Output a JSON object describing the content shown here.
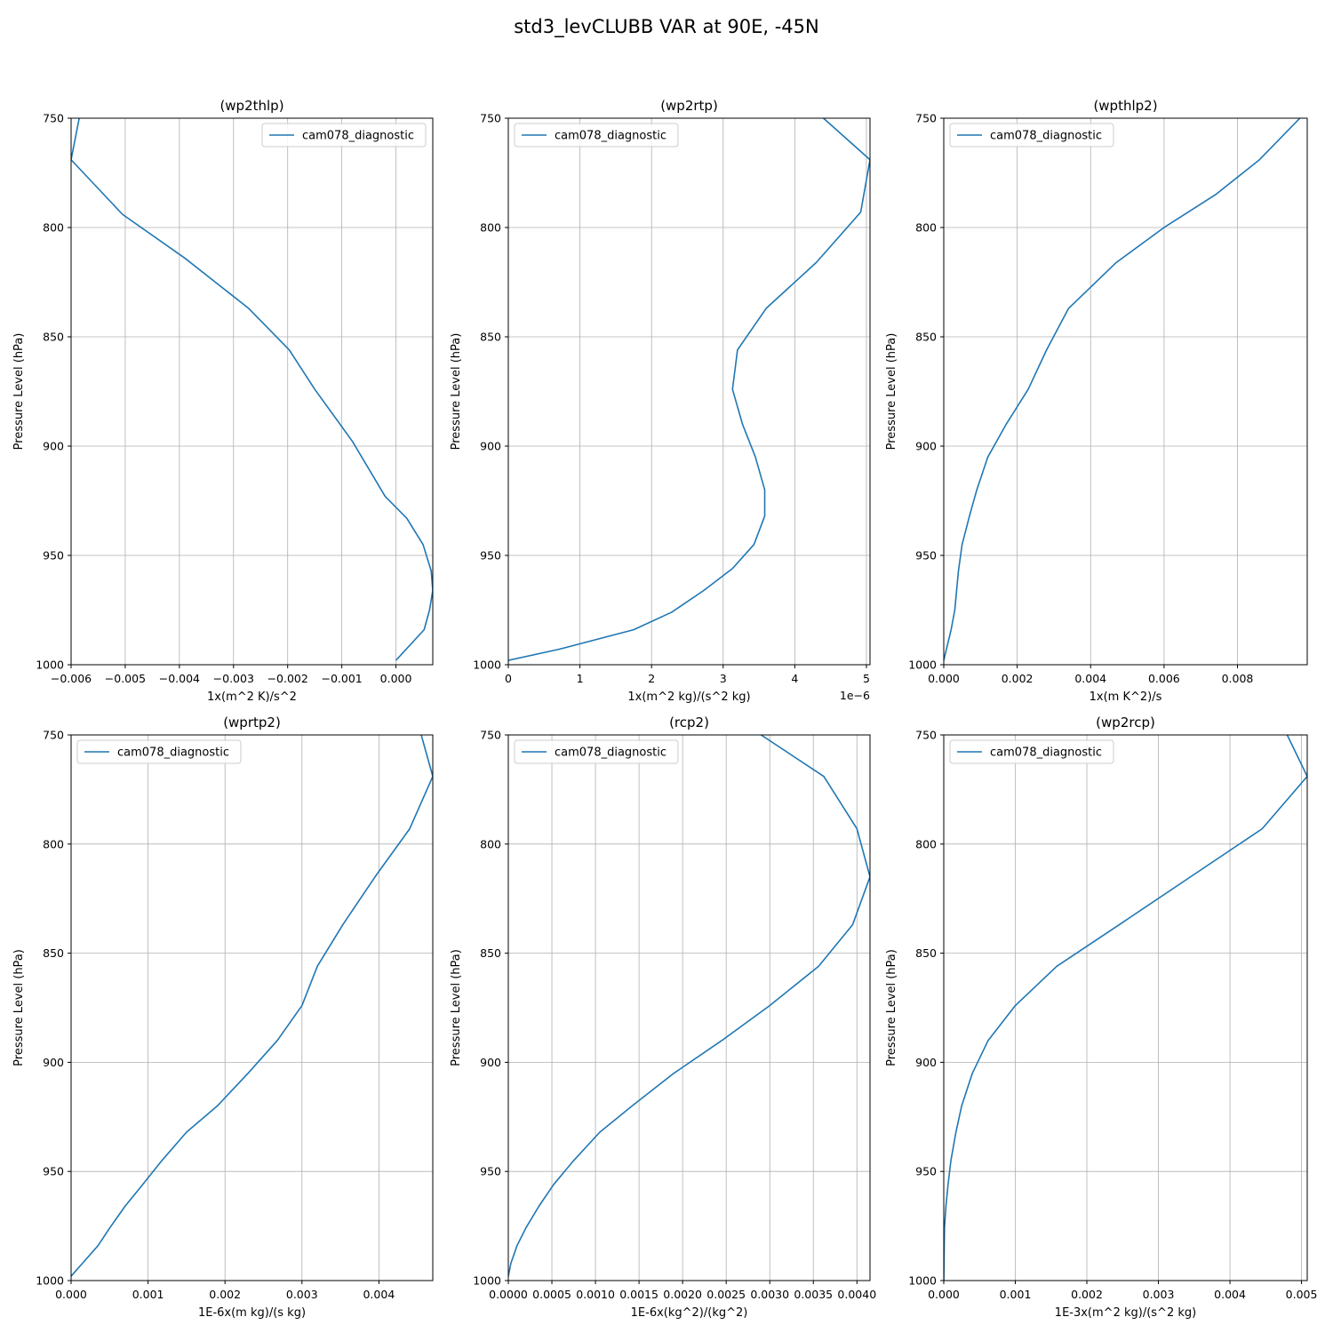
{
  "figure": {
    "title": "std3_levCLUBB VAR at 90E, -45N"
  },
  "chart_data": [
    {
      "type": "line",
      "title": "(wp2thlp)",
      "xlabel": "1x(m^2 K)/s^2",
      "ylabel": "Pressure Level (hPa)",
      "xlim": [
        -0.006,
        0.00068
      ],
      "ylim": [
        1000,
        750
      ],
      "x_ticks": [
        "−0.006",
        "−0.005",
        "−0.004",
        "−0.003",
        "−0.002",
        "−0.001",
        "0.000"
      ],
      "x_tick_values": [
        -0.006,
        -0.005,
        -0.004,
        -0.003,
        -0.002,
        -0.001,
        0.0
      ],
      "y_ticks": [
        "750",
        "800",
        "850",
        "900",
        "950",
        "1000"
      ],
      "y_tick_values": [
        750,
        800,
        850,
        900,
        950,
        1000
      ],
      "grid": true,
      "legend": "top-right",
      "series": [
        {
          "name": "cam078_diagnostic",
          "x": [
            -0.00585,
            -0.006,
            -0.00505,
            -0.0039,
            -0.00272,
            -0.00197,
            -0.0015,
            -0.0008,
            -0.0002,
            0.0002,
            0.0005,
            0.00065,
            0.00068,
            0.00062,
            0.00052,
            0.0
          ],
          "y": [
            750,
            769,
            794,
            814,
            837,
            856,
            874,
            898,
            923,
            933,
            945,
            957,
            966,
            975,
            984,
            998
          ]
        }
      ]
    },
    {
      "type": "line",
      "title": "(wp2rtp)",
      "xlabel": "1x(m^2 kg)/(s^2 kg)",
      "ylabel": "Pressure Level (hPa)",
      "x_offset_label": "1e−6",
      "xlim": [
        0,
        5.05e-06
      ],
      "ylim": [
        1000,
        750
      ],
      "x_ticks": [
        "0",
        "1",
        "2",
        "3",
        "4",
        "5"
      ],
      "x_tick_values": [
        0,
        1e-06,
        2e-06,
        3e-06,
        4e-06,
        5e-06
      ],
      "y_ticks": [
        "750",
        "800",
        "850",
        "900",
        "950",
        "1000"
      ],
      "y_tick_values": [
        750,
        800,
        850,
        900,
        950,
        1000
      ],
      "grid": true,
      "legend": "top-left",
      "series": [
        {
          "name": "cam078_diagnostic",
          "x": [
            4.4e-06,
            5.05e-06,
            4.92e-06,
            4.3e-06,
            3.6e-06,
            3.2e-06,
            3.13e-06,
            3.27e-06,
            3.45e-06,
            3.58e-06,
            3.58e-06,
            3.43e-06,
            3.13e-06,
            2.73e-06,
            2.28e-06,
            1.75e-06,
            7e-07,
            0.0
          ],
          "y": [
            750,
            769,
            793,
            816,
            837,
            856,
            874,
            890,
            905,
            920,
            932,
            945,
            956,
            966,
            976,
            984,
            993,
            998
          ]
        }
      ]
    },
    {
      "type": "line",
      "title": "(wpthlp2)",
      "xlabel": "1x(m K^2)/s",
      "ylabel": "Pressure Level (hPa)",
      "xlim": [
        0,
        0.0099
      ],
      "ylim": [
        1000,
        750
      ],
      "x_ticks": [
        "0.000",
        "0.002",
        "0.004",
        "0.006",
        "0.008"
      ],
      "x_tick_values": [
        0,
        0.002,
        0.004,
        0.006,
        0.008
      ],
      "y_ticks": [
        "750",
        "800",
        "850",
        "900",
        "950",
        "1000"
      ],
      "y_tick_values": [
        750,
        800,
        850,
        900,
        950,
        1000
      ],
      "grid": true,
      "legend": "top-left",
      "series": [
        {
          "name": "cam078_diagnostic",
          "x": [
            0.0097,
            0.0086,
            0.0074,
            0.006,
            0.0047,
            0.0034,
            0.0028,
            0.0023,
            0.0017,
            0.0012,
            0.0009,
            0.0007,
            0.0005,
            0.0004,
            0.0003,
            0.0002,
            0.0
          ],
          "y": [
            750,
            769,
            785,
            800,
            816,
            837,
            856,
            874,
            890,
            905,
            920,
            932,
            945,
            957,
            975,
            984,
            998
          ]
        }
      ]
    },
    {
      "type": "line",
      "title": "(wprtp2)",
      "xlabel": "1E-6x(m kg)/(s kg)",
      "ylabel": "Pressure Level (hPa)",
      "xlim": [
        0,
        0.0047
      ],
      "ylim": [
        1000,
        750
      ],
      "x_ticks": [
        "0.000",
        "0.001",
        "0.002",
        "0.003",
        "0.004"
      ],
      "x_tick_values": [
        0,
        0.001,
        0.002,
        0.003,
        0.004
      ],
      "y_ticks": [
        "750",
        "800",
        "850",
        "900",
        "950",
        "1000"
      ],
      "y_tick_values": [
        750,
        800,
        850,
        900,
        950,
        1000
      ],
      "grid": true,
      "legend": "top-left",
      "series": [
        {
          "name": "cam078_diagnostic",
          "x": [
            0.00455,
            0.0047,
            0.0044,
            0.00395,
            0.00353,
            0.0032,
            0.003,
            0.00268,
            0.0023,
            0.0019,
            0.0015,
            0.00118,
            0.00093,
            0.0007,
            0.0005,
            0.00035,
            0.00015,
            0.0
          ],
          "y": [
            750,
            769,
            793,
            815,
            837,
            856,
            874,
            890,
            905,
            920,
            932,
            945,
            956,
            966,
            976,
            984,
            992,
            998
          ]
        }
      ]
    },
    {
      "type": "line",
      "title": "(rcp2)",
      "xlabel": "1E-6x(kg^2)/(kg^2)",
      "ylabel": "Pressure Level (hPa)",
      "xlim": [
        0,
        0.00415
      ],
      "ylim": [
        1000,
        750
      ],
      "x_ticks": [
        "0.0000",
        "0.0005",
        "0.0010",
        "0.0015",
        "0.0020",
        "0.0025",
        "0.0030",
        "0.0035",
        "0.0040"
      ],
      "x_tick_values": [
        0,
        0.0005,
        0.001,
        0.0015,
        0.002,
        0.0025,
        0.003,
        0.0035,
        0.004
      ],
      "y_ticks": [
        "750",
        "800",
        "850",
        "900",
        "950",
        "1000"
      ],
      "y_tick_values": [
        750,
        800,
        850,
        900,
        950,
        1000
      ],
      "grid": true,
      "legend": "top-left",
      "series": [
        {
          "name": "cam078_diagnostic",
          "x": [
            0.0029,
            0.00362,
            0.004,
            0.00415,
            0.00395,
            0.00356,
            0.003,
            0.00245,
            0.0019,
            0.00142,
            0.00105,
            0.00075,
            0.00052,
            0.00035,
            0.0002,
            0.0001,
            3e-05,
            0.0
          ],
          "y": [
            750,
            769,
            793,
            815,
            837,
            856,
            874,
            890,
            905,
            920,
            932,
            945,
            956,
            966,
            976,
            984,
            992,
            998
          ]
        }
      ]
    },
    {
      "type": "line",
      "title": "(wp2rcp)",
      "xlabel": "1E-3x(m^2 kg)/(s^2 kg)",
      "ylabel": "Pressure Level (hPa)",
      "xlim": [
        0,
        0.00508
      ],
      "ylim": [
        1000,
        750
      ],
      "x_ticks": [
        "0.000",
        "0.001",
        "0.002",
        "0.003",
        "0.004",
        "0.005"
      ],
      "x_tick_values": [
        0,
        0.001,
        0.002,
        0.003,
        0.004,
        0.005
      ],
      "y_ticks": [
        "750",
        "800",
        "850",
        "900",
        "950",
        "1000"
      ],
      "y_tick_values": [
        750,
        800,
        850,
        900,
        950,
        1000
      ],
      "grid": true,
      "legend": "top-left",
      "series": [
        {
          "name": "cam078_diagnostic",
          "x": [
            0.0048,
            0.00508,
            0.00445,
            0.00345,
            0.00245,
            0.00158,
            0.001,
            0.00062,
            0.0004,
            0.00025,
            0.00017,
            0.0001,
            6e-05,
            3e-05,
            1e-05,
            0.0
          ],
          "y": [
            750,
            769,
            793,
            815,
            837,
            856,
            874,
            890,
            905,
            920,
            932,
            945,
            956,
            966,
            976,
            1000
          ]
        }
      ]
    }
  ]
}
